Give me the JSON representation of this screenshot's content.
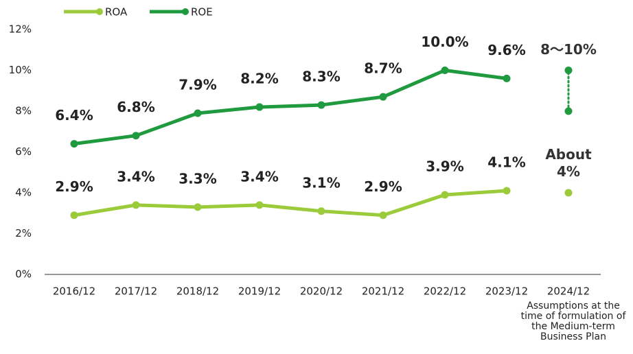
{
  "chart_data": {
    "type": "line",
    "categories": [
      "2016/12",
      "2017/12",
      "2018/12",
      "2019/12",
      "2020/12",
      "2021/12",
      "2022/12",
      "2023/12",
      "2024/12"
    ],
    "category_note": "Assumptions at the time of formulation of the Medium-term Business Plan",
    "series": [
      {
        "name": "ROA",
        "color": "#9bcb3b",
        "values": [
          2.9,
          3.4,
          3.3,
          3.4,
          3.1,
          2.9,
          3.9,
          4.1,
          null
        ],
        "value_labels": [
          "2.9%",
          "3.4%",
          "3.3%",
          "3.4%",
          "3.1%",
          "2.9%",
          "3.9%",
          "4.1%",
          null
        ],
        "target": {
          "values": [
            4
          ],
          "label": "About 4%"
        }
      },
      {
        "name": "ROE",
        "color": "#1f9a3e",
        "values": [
          6.4,
          6.8,
          7.9,
          8.2,
          8.3,
          8.7,
          10.0,
          9.6,
          null
        ],
        "value_labels": [
          "6.4%",
          "6.8%",
          "7.9%",
          "8.2%",
          "8.3%",
          "8.7%",
          "10.0%",
          "9.6%",
          null
        ],
        "target": {
          "values": [
            8,
            10
          ],
          "label": "8〜10%"
        }
      }
    ],
    "ylim": [
      0,
      12
    ],
    "yticks": [
      {
        "value": 0,
        "label": "0%"
      },
      {
        "value": 2,
        "label": "2%"
      },
      {
        "value": 4,
        "label": "4%"
      },
      {
        "value": 6,
        "label": "6%"
      },
      {
        "value": 8,
        "label": "8%"
      },
      {
        "value": 10,
        "label": "10%"
      },
      {
        "value": 12,
        "label": "12%"
      }
    ],
    "legend": "top-left",
    "grid": false
  }
}
